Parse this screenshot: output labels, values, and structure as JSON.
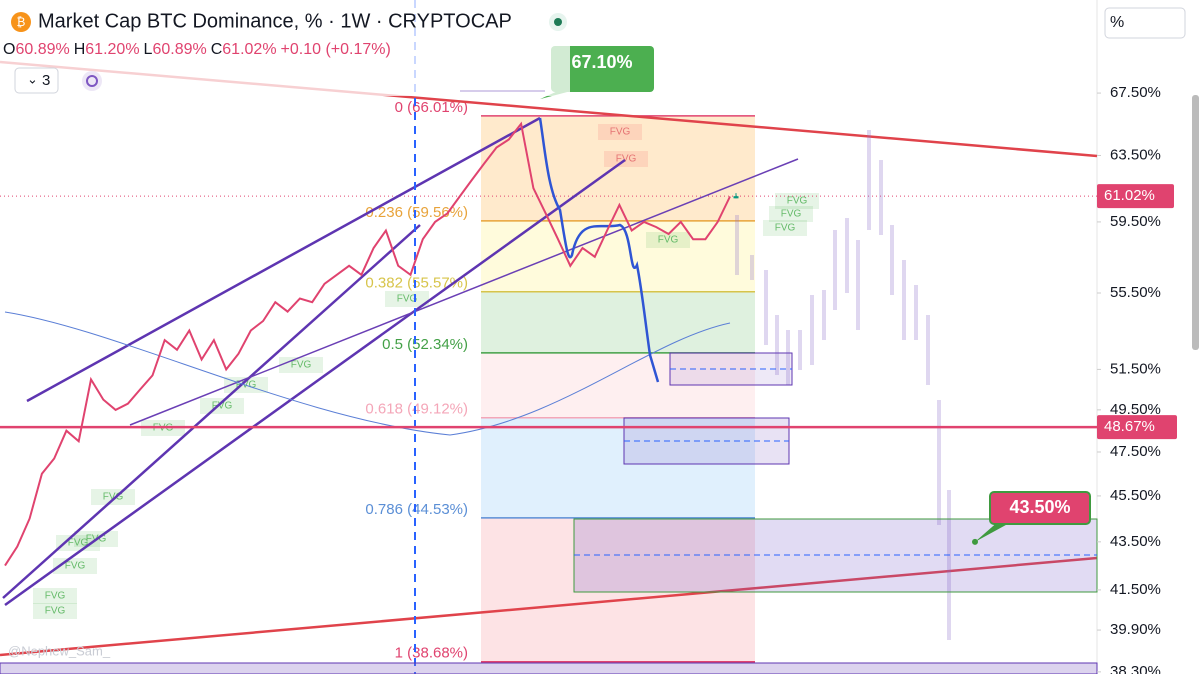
{
  "chart_data": {
    "type": "line",
    "title": "Market Cap BTC Dominance, % · 1W · CRYPTOCAP",
    "ohlc": [
      {
        "key": "O",
        "value": 60.89,
        "label": "60.89%"
      },
      {
        "key": "H",
        "value": 61.2,
        "label": "61.20%"
      },
      {
        "key": "L",
        "value": 60.89,
        "label": "60.89%"
      },
      {
        "key": "C",
        "value": 61.02,
        "label": "61.02%"
      }
    ],
    "change": "+0.10 (+0.17%)",
    "indicator_count": "3",
    "scale_unit": "%",
    "watermark": "@Nephew_Sam_",
    "color": "#e0436f",
    "log_scale": true,
    "ylim": [
      38.22,
      73.94
    ],
    "yticks": [
      {
        "value": 67.5,
        "label": "67.50%"
      },
      {
        "value": 63.5,
        "label": "63.50%"
      },
      {
        "value": 59.5,
        "label": "59.50%"
      },
      {
        "value": 55.5,
        "label": "55.50%"
      },
      {
        "value": 51.5,
        "label": "51.50%"
      },
      {
        "value": 49.5,
        "label": "49.50%"
      },
      {
        "value": 47.5,
        "label": "47.50%"
      },
      {
        "value": 45.5,
        "label": "45.50%"
      },
      {
        "value": 43.5,
        "label": "43.50%"
      },
      {
        "value": 41.5,
        "label": "41.50%"
      },
      {
        "value": 39.9,
        "label": "39.90%"
      },
      {
        "value": 38.3,
        "label": "38.30%"
      }
    ],
    "values": [
      42.5,
      43.3,
      44.5,
      46.5,
      47.2,
      48.5,
      48.0,
      51.0,
      50.0,
      49.5,
      49.8,
      50.5,
      51.2,
      53.0,
      52.5,
      53.5,
      52.0,
      53.0,
      51.5,
      52.3,
      53.5,
      54.0,
      55.0,
      54.5,
      55.2,
      55.0,
      56.0,
      56.5,
      57.0,
      56.5,
      58.0,
      59.0,
      57.0,
      56.5,
      58.5,
      59.5,
      60.0,
      61.0,
      62.0,
      63.0,
      64.0,
      64.5,
      65.5,
      61.5,
      60.0,
      58.5,
      57.0,
      58.0,
      57.5,
      59.0,
      60.5,
      59.0,
      59.5,
      59.2,
      58.8,
      59.5,
      58.5,
      58.5,
      59.5,
      61.0
    ],
    "fib_levels": [
      {
        "value": 66.01,
        "label": "0 (66.01%)",
        "color": "#e0436f",
        "fill": "rgba(255,152,0,0.2)"
      },
      {
        "value": 59.56,
        "label": "0.236 (59.56%)",
        "color": "#e8a33a",
        "fill": "rgba(255,235,59,0.18)"
      },
      {
        "value": 55.57,
        "label": "0.382 (55.57%)",
        "color": "#d7c44a",
        "fill": "rgba(76,175,80,0.18)"
      },
      {
        "value": 52.34,
        "label": "0.5 (52.34%)",
        "color": "#43a047",
        "fill": "rgba(242,54,69,0.08)"
      },
      {
        "value": 49.12,
        "label": "0.618 (49.12%)",
        "color": "#f4a6b8",
        "fill": "rgba(33,150,243,0.14)"
      },
      {
        "value": 44.53,
        "label": "0.786 (44.53%)",
        "color": "#5b8fd6",
        "fill": "rgba(242,54,69,0.14)"
      },
      {
        "value": 38.68,
        "label": "1 (38.68%)",
        "color": "#e0436f"
      }
    ],
    "last_price": {
      "value": 61.02,
      "label": "61.02%",
      "color": "#e0436f"
    },
    "support_level": {
      "value": 48.67,
      "label": "48.67%",
      "color": "#e0436f"
    },
    "peak_callout": {
      "value": 67.1,
      "label": "67.10%",
      "color": "#4caf50"
    },
    "target_callout": {
      "value": 43.5,
      "label": "43.50%",
      "color": "#e0436f"
    },
    "fvg_labels": [
      "FVG",
      "FVG",
      "FVG",
      "FVG",
      "FVG",
      "FVG",
      "FVG",
      "FVG",
      "FVG",
      "FVG",
      "FVG",
      "FVG",
      "FVG",
      "FVG",
      "FVG",
      "FVG",
      "FVG"
    ]
  }
}
